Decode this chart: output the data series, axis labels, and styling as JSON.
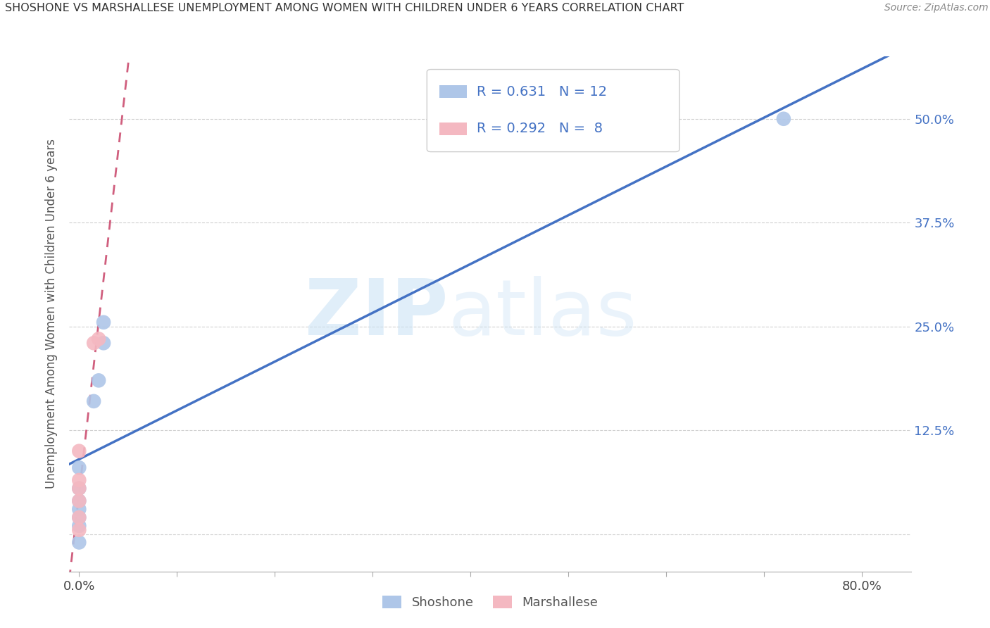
{
  "title": "SHOSHONE VS MARSHALLESE UNEMPLOYMENT AMONG WOMEN WITH CHILDREN UNDER 6 YEARS CORRELATION CHART",
  "source": "Source: ZipAtlas.com",
  "ylabel": "Unemployment Among Women with Children Under 6 years",
  "watermark_zip": "ZIP",
  "watermark_atlas": "atlas",
  "xlim": [
    -0.01,
    0.85
  ],
  "ylim": [
    -0.045,
    0.575
  ],
  "xticks": [
    0.0,
    0.1,
    0.2,
    0.3,
    0.4,
    0.5,
    0.6,
    0.7,
    0.8
  ],
  "xticklabels": [
    "0.0%",
    "",
    "",
    "",
    "",
    "",
    "",
    "",
    "80.0%"
  ],
  "yticks": [
    0.0,
    0.125,
    0.25,
    0.375,
    0.5
  ],
  "yticklabels_right": [
    "",
    "12.5%",
    "25.0%",
    "37.5%",
    "50.0%"
  ],
  "shoshone_x": [
    0.0,
    0.0,
    0.0,
    0.0,
    0.0,
    0.0,
    0.0,
    0.015,
    0.02,
    0.025,
    0.025,
    0.72
  ],
  "shoshone_y": [
    -0.01,
    0.01,
    0.02,
    0.03,
    0.04,
    0.055,
    0.08,
    0.16,
    0.185,
    0.23,
    0.255,
    0.5
  ],
  "marshallese_x": [
    0.0,
    0.0,
    0.0,
    0.0,
    0.0,
    0.0,
    0.015,
    0.02
  ],
  "marshallese_y": [
    0.005,
    0.02,
    0.04,
    0.055,
    0.065,
    0.1,
    0.23,
    0.235
  ],
  "shoshone_color": "#aec6e8",
  "marshallese_color": "#f4b8c1",
  "shoshone_line_color": "#4472c4",
  "marshallese_line_color": "#d05f7e",
  "shoshone_R": 0.631,
  "shoshone_N": 12,
  "marshallese_R": 0.292,
  "marshallese_N": 8,
  "legend_label_shoshone": "Shoshone",
  "legend_label_marshallese": "Marshallese",
  "right_ytick_color": "#4472c4",
  "grid_color": "#d0d0d0"
}
